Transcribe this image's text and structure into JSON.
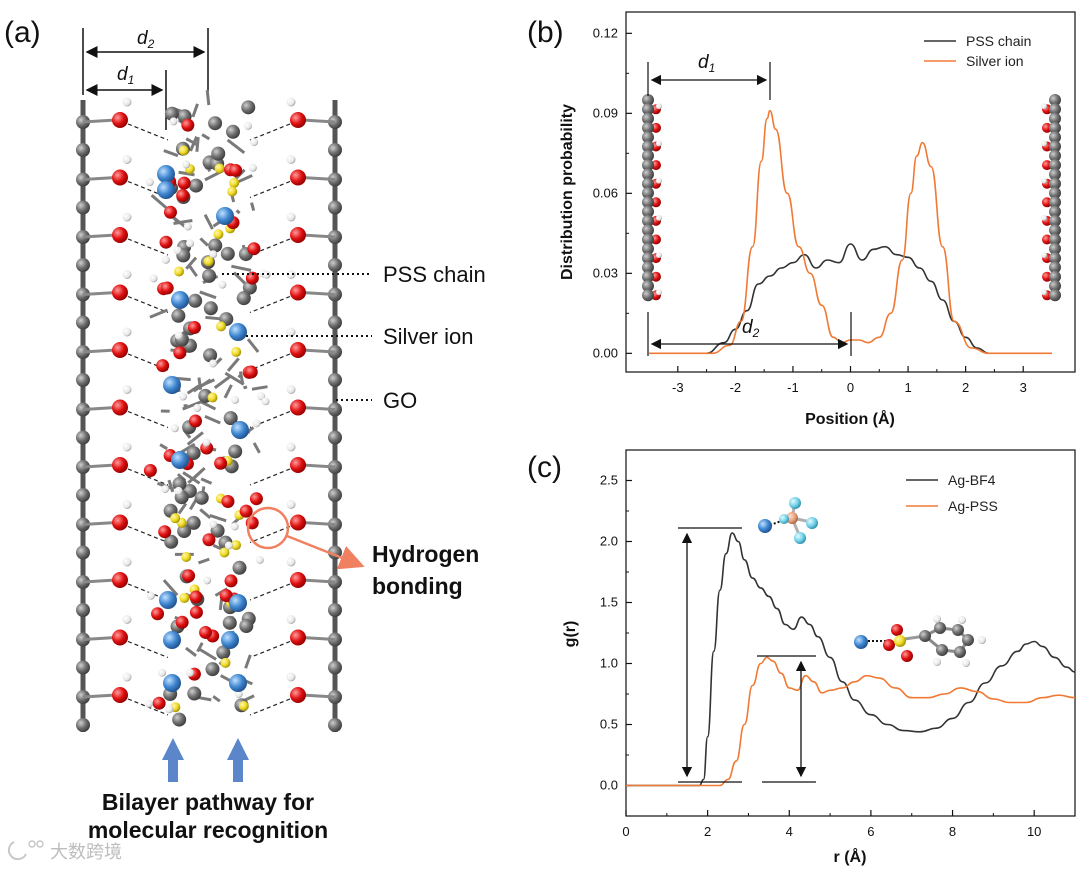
{
  "panel_a": {
    "label": "(a)",
    "d1": "d",
    "d1_sub": "1",
    "d2": "d",
    "d2_sub": "2",
    "callouts": [
      "PSS chain",
      "Silver ion",
      "GO"
    ],
    "hbond_line1": "Hydrogen",
    "hbond_line2": "bonding",
    "caption_line1": "Bilayer pathway for",
    "caption_line2": "molecular recognition"
  },
  "panel_b": {
    "label": "(b)",
    "d1": "d",
    "d1_sub": "1",
    "d2": "d",
    "d2_sub": "2"
  },
  "panel_c": {
    "label": "(c)"
  },
  "watermark": "大数跨境",
  "colors": {
    "pss": "#333333",
    "silver": "#f07a35",
    "carbon": "#6e6e6e",
    "oxygen": "#e01010",
    "sulfur": "#f0dc28",
    "ag_ion": "#3f86d0",
    "hydrogen": "#f2f2f2",
    "arrow_blue": "#5b86c9",
    "hbond_circle": "#f08060"
  },
  "chart_data": [
    {
      "type": "line",
      "title": "",
      "xlabel": "Position (Å)",
      "ylabel": "Distribution probability",
      "xlim": [
        -3.9,
        3.9
      ],
      "ylim": [
        -0.007,
        0.128
      ],
      "xticks": [
        -3,
        -2,
        -1,
        0,
        1,
        2,
        3
      ],
      "yticks": [
        "0.00",
        "0.03",
        "0.06",
        "0.09",
        "0.12"
      ],
      "legend_position": "top-right",
      "series": [
        {
          "name": "PSS chain",
          "color": "#333333",
          "x": [
            -2.5,
            -2.2,
            -2.0,
            -1.8,
            -1.6,
            -1.4,
            -1.2,
            -1.0,
            -0.8,
            -0.6,
            -0.4,
            -0.2,
            0.0,
            0.2,
            0.4,
            0.6,
            0.8,
            1.0,
            1.2,
            1.4,
            1.6,
            1.8,
            2.0,
            2.2,
            2.4
          ],
          "y": [
            0.0,
            0.004,
            0.009,
            0.016,
            0.026,
            0.029,
            0.032,
            0.034,
            0.037,
            0.032,
            0.035,
            0.034,
            0.041,
            0.035,
            0.039,
            0.04,
            0.037,
            0.036,
            0.032,
            0.027,
            0.02,
            0.012,
            0.006,
            0.002,
            0.0
          ]
        },
        {
          "name": "Silver ion",
          "color": "#f07a35",
          "x": [
            -3.5,
            -2.4,
            -2.1,
            -1.9,
            -1.7,
            -1.55,
            -1.45,
            -1.4,
            -1.3,
            -1.1,
            -0.9,
            -0.7,
            -0.5,
            -0.3,
            -0.15,
            0.0,
            0.15,
            0.3,
            0.5,
            0.7,
            0.9,
            1.05,
            1.15,
            1.25,
            1.4,
            1.6,
            1.8,
            2.1,
            2.4,
            3.5
          ],
          "y": [
            0.0,
            0.0,
            0.003,
            0.012,
            0.04,
            0.072,
            0.088,
            0.091,
            0.084,
            0.06,
            0.04,
            0.03,
            0.018,
            0.006,
            0.004,
            0.005,
            0.005,
            0.004,
            0.006,
            0.015,
            0.035,
            0.06,
            0.074,
            0.079,
            0.07,
            0.04,
            0.012,
            0.002,
            0.0,
            0.0
          ]
        }
      ]
    },
    {
      "type": "line",
      "title": "",
      "xlabel": "r (Å)",
      "ylabel": "g(r)",
      "xlim": [
        0,
        11
      ],
      "ylim": [
        -0.25,
        2.75
      ],
      "xticks": [
        0,
        2,
        4,
        6,
        8,
        10
      ],
      "yticks": [
        "0.0",
        "0.5",
        "1.0",
        "1.5",
        "2.0",
        "2.5"
      ],
      "legend_position": "top-right",
      "series": [
        {
          "name": "Ag-BF4",
          "color": "#333333",
          "x": [
            0,
            1.8,
            1.9,
            2.0,
            2.15,
            2.3,
            2.45,
            2.6,
            2.75,
            2.9,
            3.1,
            3.3,
            3.5,
            3.7,
            3.9,
            4.1,
            4.3,
            4.5,
            4.7,
            5.0,
            5.3,
            5.6,
            6.0,
            6.4,
            6.8,
            7.2,
            7.6,
            8.0,
            8.4,
            8.8,
            9.2,
            9.6,
            9.8,
            10.0,
            10.2,
            10.5,
            10.8,
            11.0
          ],
          "y": [
            0,
            0,
            0.05,
            0.4,
            1.1,
            1.6,
            1.9,
            2.07,
            2.0,
            1.85,
            1.7,
            1.62,
            1.55,
            1.45,
            1.32,
            1.28,
            1.38,
            1.32,
            1.22,
            1.05,
            0.85,
            0.7,
            0.58,
            0.5,
            0.45,
            0.44,
            0.47,
            0.55,
            0.68,
            0.84,
            0.98,
            1.1,
            1.16,
            1.18,
            1.14,
            1.05,
            0.97,
            0.93
          ]
        },
        {
          "name": "Ag-PSS",
          "color": "#f07a35",
          "x": [
            0,
            2.3,
            2.5,
            2.7,
            2.9,
            3.1,
            3.3,
            3.45,
            3.6,
            3.8,
            4.0,
            4.2,
            4.4,
            4.6,
            4.8,
            5.0,
            5.3,
            5.6,
            5.9,
            6.2,
            6.6,
            7.0,
            7.4,
            7.8,
            8.2,
            8.6,
            9.0,
            9.4,
            9.8,
            10.2,
            10.6,
            11.0
          ],
          "y": [
            0,
            0,
            0.05,
            0.2,
            0.5,
            0.82,
            1.0,
            1.05,
            1.02,
            0.92,
            0.8,
            0.78,
            0.9,
            0.85,
            0.76,
            0.78,
            0.8,
            0.85,
            0.9,
            0.88,
            0.8,
            0.72,
            0.72,
            0.75,
            0.8,
            0.77,
            0.71,
            0.68,
            0.68,
            0.72,
            0.74,
            0.72
          ]
        }
      ]
    }
  ]
}
